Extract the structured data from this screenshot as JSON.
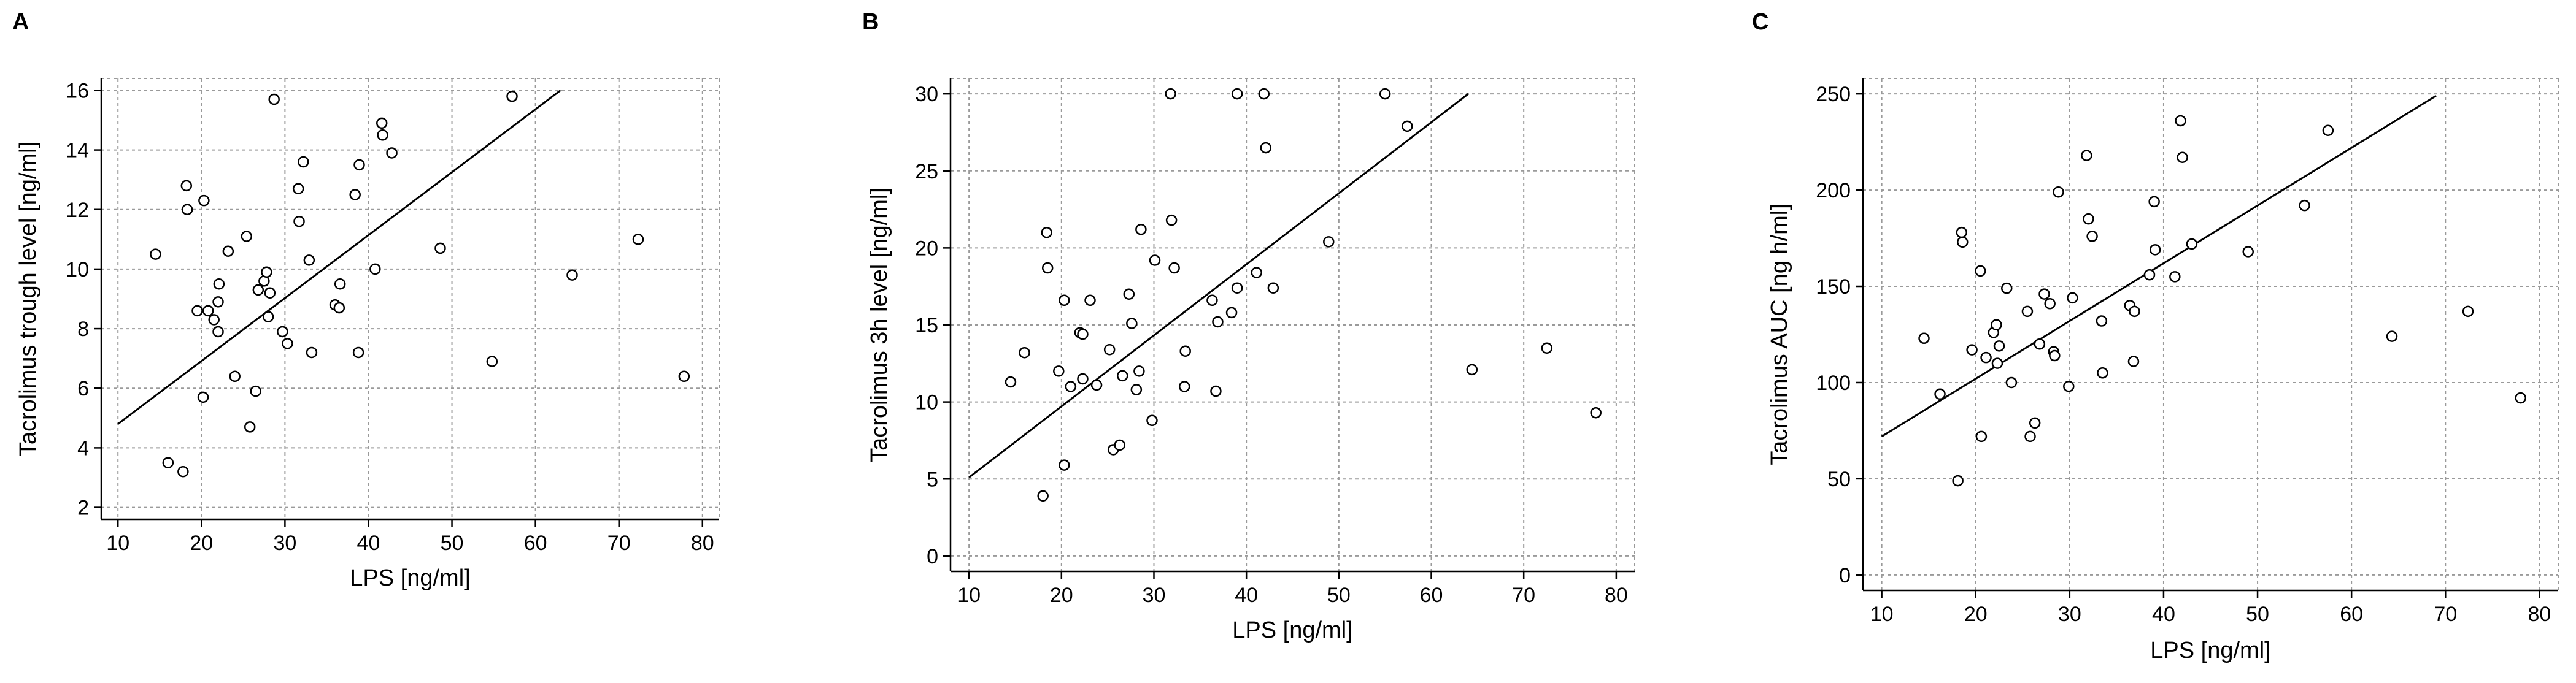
{
  "chart_data": [
    {
      "panel": "A",
      "type": "scatter",
      "xlabel": "LPS [ng/ml]",
      "ylabel": "Tacrolimus trough level [ng/ml]",
      "xlim": [
        8,
        82
      ],
      "ylim": [
        1.6,
        16.4
      ],
      "xticks": [
        10,
        20,
        30,
        40,
        50,
        60,
        70,
        80
      ],
      "yticks": [
        2,
        4,
        6,
        8,
        10,
        12,
        14,
        16
      ],
      "grid": true,
      "points": [
        [
          14.5,
          10.5
        ],
        [
          16,
          3.5
        ],
        [
          17.8,
          3.2
        ],
        [
          18.2,
          12.8
        ],
        [
          18.3,
          12
        ],
        [
          19.5,
          8.6
        ],
        [
          20.3,
          12.3
        ],
        [
          20.2,
          5.7
        ],
        [
          20.8,
          8.6
        ],
        [
          21.5,
          8.3
        ],
        [
          22,
          7.9
        ],
        [
          22.1,
          9.5
        ],
        [
          22,
          8.9
        ],
        [
          23.2,
          10.6
        ],
        [
          24,
          6.4
        ],
        [
          25.4,
          11.1
        ],
        [
          25.8,
          4.7
        ],
        [
          26.5,
          5.9
        ],
        [
          26.8,
          9.3
        ],
        [
          27.5,
          9.6
        ],
        [
          27.8,
          9.9
        ],
        [
          28,
          8.4
        ],
        [
          28.2,
          9.2
        ],
        [
          28.7,
          15.7
        ],
        [
          29.7,
          7.9
        ],
        [
          30.3,
          7.5
        ],
        [
          31.6,
          12.7
        ],
        [
          31.7,
          11.6
        ],
        [
          32.2,
          13.6
        ],
        [
          32.9,
          10.3
        ],
        [
          33.2,
          7.2
        ],
        [
          36,
          8.8
        ],
        [
          36.5,
          8.7
        ],
        [
          36.6,
          9.5
        ],
        [
          38.4,
          12.5
        ],
        [
          38.8,
          7.2
        ],
        [
          38.9,
          13.5
        ],
        [
          40.8,
          10
        ],
        [
          41.6,
          14.9
        ],
        [
          41.7,
          14.5
        ],
        [
          42.8,
          13.9
        ],
        [
          48.6,
          10.7
        ],
        [
          54.8,
          6.9
        ],
        [
          57.2,
          15.8
        ],
        [
          64.4,
          9.8
        ],
        [
          72.3,
          11
        ],
        [
          77.8,
          6.4
        ]
      ],
      "fit": [
        [
          10,
          4.8
        ],
        [
          63,
          16
        ]
      ]
    },
    {
      "panel": "B",
      "type": "scatter",
      "xlabel": "LPS [ng/ml]",
      "ylabel": "Tacrolimus 3h level [ng/ml]",
      "xlim": [
        8,
        82
      ],
      "ylim": [
        -1,
        31
      ],
      "xticks": [
        10,
        20,
        30,
        40,
        50,
        60,
        70,
        80
      ],
      "yticks": [
        0,
        5,
        10,
        15,
        20,
        25,
        30
      ],
      "grid": true,
      "points": [
        [
          14.5,
          11.3
        ],
        [
          16,
          13.2
        ],
        [
          18,
          3.9
        ],
        [
          18.4,
          21
        ],
        [
          18.5,
          18.7
        ],
        [
          19.7,
          12
        ],
        [
          20.3,
          5.9
        ],
        [
          20.3,
          16.6
        ],
        [
          21,
          11
        ],
        [
          22,
          14.5
        ],
        [
          22.3,
          14.4
        ],
        [
          22.3,
          11.5
        ],
        [
          23.1,
          16.6
        ],
        [
          23.8,
          11.1
        ],
        [
          25.2,
          13.4
        ],
        [
          25.6,
          6.9
        ],
        [
          26.3,
          7.2
        ],
        [
          26.6,
          11.7
        ],
        [
          27.3,
          17
        ],
        [
          27.6,
          15.1
        ],
        [
          28.1,
          10.8
        ],
        [
          28.4,
          12
        ],
        [
          28.6,
          21.2
        ],
        [
          29.8,
          8.8
        ],
        [
          30.1,
          19.2
        ],
        [
          31.8,
          30
        ],
        [
          31.9,
          21.8
        ],
        [
          32.2,
          18.7
        ],
        [
          33.3,
          11
        ],
        [
          33.4,
          13.3
        ],
        [
          36.3,
          16.6
        ],
        [
          36.7,
          10.7
        ],
        [
          36.9,
          15.2
        ],
        [
          38.4,
          15.8
        ],
        [
          39,
          17.4
        ],
        [
          39,
          30
        ],
        [
          41.1,
          18.4
        ],
        [
          41.9,
          30
        ],
        [
          42.1,
          26.5
        ],
        [
          42.9,
          17.4
        ],
        [
          48.9,
          20.4
        ],
        [
          55,
          30
        ],
        [
          57.4,
          27.9
        ],
        [
          64.4,
          12.1
        ],
        [
          72.5,
          13.5
        ],
        [
          77.8,
          9.3
        ]
      ],
      "fit": [
        [
          10,
          5.1
        ],
        [
          64,
          30
        ]
      ]
    },
    {
      "panel": "C",
      "type": "scatter",
      "xlabel": "LPS [ng/ml]",
      "ylabel": "Tacrolimus AUC [ng h/ml]",
      "xlim": [
        8,
        82
      ],
      "ylim": [
        -8,
        258
      ],
      "xticks": [
        10,
        20,
        30,
        40,
        50,
        60,
        70,
        80
      ],
      "yticks": [
        0,
        50,
        100,
        150,
        200,
        250
      ],
      "grid": true,
      "points": [
        [
          14.5,
          123
        ],
        [
          16.2,
          94
        ],
        [
          18.1,
          49
        ],
        [
          18.5,
          178
        ],
        [
          18.6,
          173
        ],
        [
          19.6,
          117
        ],
        [
          20.5,
          158
        ],
        [
          20.6,
          72
        ],
        [
          21.1,
          113
        ],
        [
          21.9,
          126
        ],
        [
          22.2,
          130
        ],
        [
          22.3,
          110
        ],
        [
          22.5,
          119
        ],
        [
          23.3,
          149
        ],
        [
          23.8,
          100
        ],
        [
          25.5,
          137
        ],
        [
          25.8,
          72
        ],
        [
          26.3,
          79
        ],
        [
          26.8,
          120
        ],
        [
          27.3,
          146
        ],
        [
          27.9,
          141
        ],
        [
          28.3,
          116
        ],
        [
          28.4,
          114
        ],
        [
          28.8,
          199
        ],
        [
          29.9,
          98
        ],
        [
          30.3,
          144
        ],
        [
          31.8,
          218
        ],
        [
          32,
          185
        ],
        [
          32.4,
          176
        ],
        [
          33.4,
          132
        ],
        [
          33.5,
          105
        ],
        [
          36.4,
          140
        ],
        [
          36.8,
          111
        ],
        [
          36.9,
          137
        ],
        [
          38.5,
          156
        ],
        [
          39,
          194
        ],
        [
          39.1,
          169
        ],
        [
          41.2,
          155
        ],
        [
          41.8,
          236
        ],
        [
          42,
          217
        ],
        [
          43,
          172
        ],
        [
          49,
          168
        ],
        [
          55,
          192
        ],
        [
          57.5,
          231
        ],
        [
          64.3,
          124
        ],
        [
          72.4,
          137
        ],
        [
          78,
          92
        ]
      ],
      "fit": [
        [
          10,
          72
        ],
        [
          69,
          249
        ]
      ]
    }
  ]
}
